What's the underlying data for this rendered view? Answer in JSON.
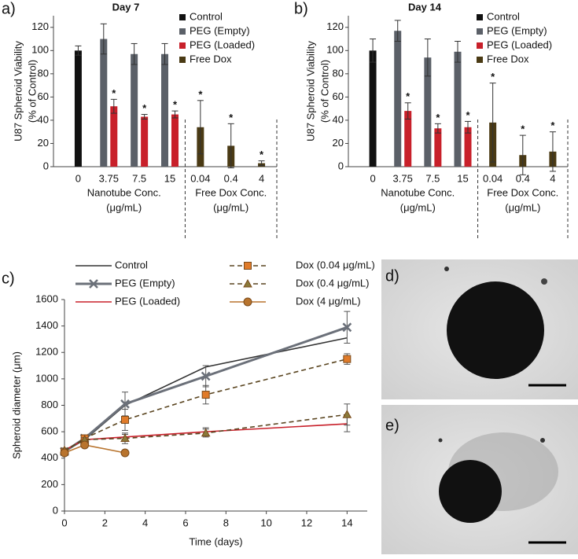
{
  "chart_data": [
    {
      "type": "bar",
      "panel_label": "a)",
      "title": "Day 7",
      "y_label": [
        "U87 Spheroid Viability",
        "(% of Control)"
      ],
      "x_group_labels": [
        [
          "Nanotube Conc.",
          "(μg/mL)"
        ],
        [
          "Free Dox Conc.",
          "(μg/mL)"
        ]
      ],
      "categories": [
        "0",
        "3.75",
        "7.5",
        "15",
        "0.04",
        "0.4",
        "4"
      ],
      "ylim": [
        0,
        130
      ],
      "yticks": [
        0,
        20,
        40,
        60,
        80,
        100,
        120
      ],
      "grid": false,
      "legend": "top-right",
      "series": [
        {
          "name": "Control",
          "color": "#111111",
          "values": [
            100,
            null,
            null,
            null,
            null,
            null,
            null
          ],
          "errors": [
            4,
            null,
            null,
            null,
            null,
            null,
            null
          ],
          "significance": [
            null,
            null,
            null,
            null,
            null,
            null,
            null
          ]
        },
        {
          "name": "PEG (Empty)",
          "color": "#5b6068",
          "values": [
            null,
            110,
            97,
            97,
            null,
            null,
            null
          ],
          "errors": [
            null,
            13,
            9,
            9,
            null,
            null,
            null
          ],
          "significance": [
            null,
            null,
            null,
            null,
            null,
            null,
            null
          ]
        },
        {
          "name": "PEG (Loaded)",
          "color": "#c8202a",
          "values": [
            null,
            52,
            43,
            45,
            null,
            null,
            null
          ],
          "errors": [
            null,
            6,
            2,
            3,
            null,
            null,
            null
          ],
          "significance": [
            null,
            "*",
            "*",
            "*",
            null,
            null,
            null
          ]
        },
        {
          "name": "Free Dox",
          "color": "#4a3a14",
          "values": [
            null,
            null,
            null,
            null,
            34,
            18,
            3
          ],
          "errors": [
            null,
            null,
            null,
            null,
            23,
            19,
            2
          ],
          "significance": [
            null,
            null,
            null,
            null,
            "*",
            "*",
            "*"
          ]
        }
      ]
    },
    {
      "type": "bar",
      "panel_label": "b)",
      "title": "Day 14",
      "y_label": [
        "U87 Spheroid Viability",
        "(% of Control)"
      ],
      "x_group_labels": [
        [
          "Nanotube Conc.",
          "(μg/mL)"
        ],
        [
          "Free Dox Conc.",
          "(μg/mL)"
        ]
      ],
      "categories": [
        "0",
        "3.75",
        "7.5",
        "15",
        "0.04",
        "0.4",
        "4"
      ],
      "ylim": [
        0,
        130
      ],
      "yticks": [
        0,
        20,
        40,
        60,
        80,
        100,
        120
      ],
      "grid": false,
      "legend": "top-right",
      "series": [
        {
          "name": "Control",
          "color": "#111111",
          "values": [
            100,
            null,
            null,
            null,
            null,
            null,
            null
          ],
          "errors": [
            10,
            null,
            null,
            null,
            null,
            null,
            null
          ],
          "significance": [
            null,
            null,
            null,
            null,
            null,
            null,
            null
          ]
        },
        {
          "name": "PEG (Empty)",
          "color": "#5b6068",
          "values": [
            null,
            117,
            94,
            99,
            null,
            null,
            null
          ],
          "errors": [
            null,
            9,
            16,
            9,
            null,
            null,
            null
          ],
          "significance": [
            null,
            null,
            null,
            null,
            null,
            null,
            null
          ]
        },
        {
          "name": "PEG (Loaded)",
          "color": "#c8202a",
          "values": [
            null,
            48,
            33,
            34,
            null,
            null,
            null
          ],
          "errors": [
            null,
            7,
            4,
            5,
            null,
            null,
            null
          ],
          "significance": [
            null,
            "*",
            "*",
            "*",
            null,
            null,
            null
          ]
        },
        {
          "name": "Free Dox",
          "color": "#4a3a14",
          "values": [
            null,
            null,
            null,
            null,
            38,
            10,
            13
          ],
          "errors": [
            null,
            null,
            null,
            null,
            34,
            17,
            17
          ],
          "significance": [
            null,
            null,
            null,
            null,
            "*",
            "*",
            "*"
          ]
        }
      ]
    },
    {
      "type": "line",
      "panel_label": "c)",
      "x_label": "Time (days)",
      "y_label": "Spheroid diameter (μm)",
      "xlim": [
        0,
        15
      ],
      "xticks": [
        0,
        2,
        4,
        6,
        8,
        10,
        12,
        14
      ],
      "ylim": [
        0,
        1600
      ],
      "yticks": [
        0,
        200,
        400,
        600,
        800,
        1000,
        1200,
        1400,
        1600
      ],
      "grid": false,
      "legend": "top",
      "series": [
        {
          "name": "Control",
          "color": "#333333",
          "marker": "none",
          "dashed": false,
          "x": [
            0,
            1,
            3,
            7,
            14
          ],
          "values": [
            450,
            540,
            800,
            1090,
            1310
          ],
          "errors": [
            null,
            null,
            null,
            null,
            null
          ]
        },
        {
          "name": "PEG (Empty)",
          "color": "#6b7079",
          "marker": "x",
          "dashed": false,
          "x": [
            0,
            1,
            3,
            7,
            14
          ],
          "values": [
            450,
            550,
            810,
            1020,
            1390
          ],
          "errors": [
            20,
            20,
            90,
            80,
            120
          ]
        },
        {
          "name": "PEG (Loaded)",
          "color": "#c8202a",
          "marker": "none",
          "dashed": false,
          "x": [
            0,
            1,
            3,
            7,
            14
          ],
          "values": [
            460,
            540,
            560,
            600,
            660
          ],
          "errors": [
            15,
            15,
            20,
            30,
            60
          ]
        },
        {
          "name": "Dox (0.04 μg/mL)",
          "color": "#e07b2a",
          "marker": "square",
          "dashed": true,
          "x": [
            0,
            1,
            3,
            7,
            14
          ],
          "values": [
            450,
            550,
            690,
            880,
            1150
          ],
          "errors": [
            15,
            15,
            80,
            70,
            40
          ]
        },
        {
          "name": "Dox (0.4 μg/mL)",
          "color": "#8b7a3a",
          "marker": "triangle",
          "dashed": true,
          "x": [
            0,
            1,
            3,
            7,
            14
          ],
          "values": [
            460,
            540,
            550,
            590,
            730
          ],
          "errors": [
            15,
            15,
            40,
            30,
            80
          ]
        },
        {
          "name": "Dox (4 μg/mL)",
          "color": "#b8742e",
          "marker": "circle",
          "dashed": false,
          "x": [
            0,
            1,
            3,
            7,
            14
          ],
          "values": [
            440,
            500,
            440,
            null,
            null
          ],
          "errors": [
            15,
            15,
            15,
            null,
            null
          ]
        }
      ]
    }
  ],
  "images": [
    {
      "panel_label": "d)"
    },
    {
      "panel_label": "e)"
    }
  ]
}
